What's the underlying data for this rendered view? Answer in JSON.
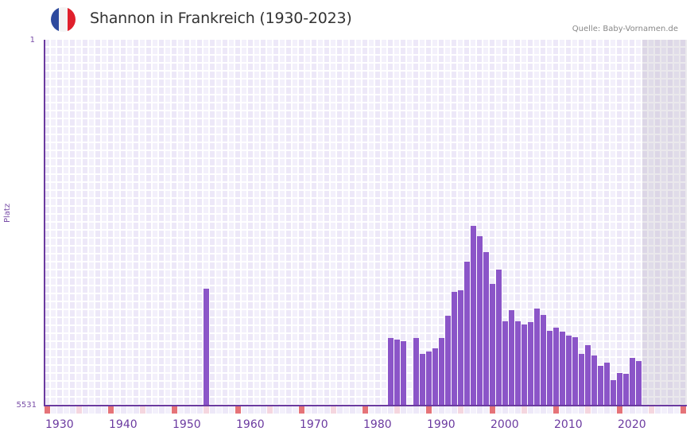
{
  "header": {
    "title": "Shannon in Frankreich (1930-2023)",
    "source": "Quelle: Baby-Vornamen.de",
    "flag_colors": [
      "#2e4a9e",
      "#f4f4f4",
      "#e0202c"
    ]
  },
  "axis": {
    "y_top_label": "1",
    "y_bottom_label": "5531",
    "y_title": "Platz",
    "x_ticks": [
      "1930",
      "1940",
      "1950",
      "1960",
      "1970",
      "1980",
      "1990",
      "2000",
      "2010",
      "2020"
    ]
  },
  "colors": {
    "bar": "#8b55c8",
    "axis": "#6b3aa0",
    "grid_a": "#ede8f8",
    "grid_b": "#f3f0fb",
    "decade_marker": "#e57378",
    "half_decade_marker": "#f5d6df",
    "future_shade": "#e2dcea"
  },
  "chart_data": {
    "type": "bar",
    "title": "Shannon in Frankreich (1930-2023)",
    "xlabel": "",
    "ylabel": "Platz",
    "ylim": [
      5531,
      1
    ],
    "y_inverted": true,
    "x_range": [
      1930,
      2030
    ],
    "data_range": [
      1930,
      2023
    ],
    "source": "Quelle: Baby-Vornamen.de",
    "categories": [
      1955,
      1984,
      1985,
      1986,
      1988,
      1989,
      1990,
      1991,
      1992,
      1993,
      1994,
      1995,
      1996,
      1997,
      1998,
      1999,
      2000,
      2001,
      2002,
      2003,
      2004,
      2005,
      2006,
      2007,
      2008,
      2009,
      2010,
      2011,
      2012,
      2013,
      2014,
      2015,
      2016,
      2017,
      2018,
      2019,
      2020,
      2021,
      2022,
      2023
    ],
    "values": [
      3763,
      4508,
      4532,
      4556,
      4508,
      4748,
      4712,
      4664,
      4508,
      4171,
      3811,
      3787,
      3355,
      2814,
      2970,
      3210,
      3691,
      3475,
      4256,
      4087,
      4256,
      4304,
      4268,
      4063,
      4160,
      4400,
      4352,
      4412,
      4472,
      4496,
      4748,
      4616,
      4773,
      4929,
      4881,
      5145,
      5037,
      5049,
      4809,
      4857
    ],
    "grid": true,
    "legend": null
  }
}
